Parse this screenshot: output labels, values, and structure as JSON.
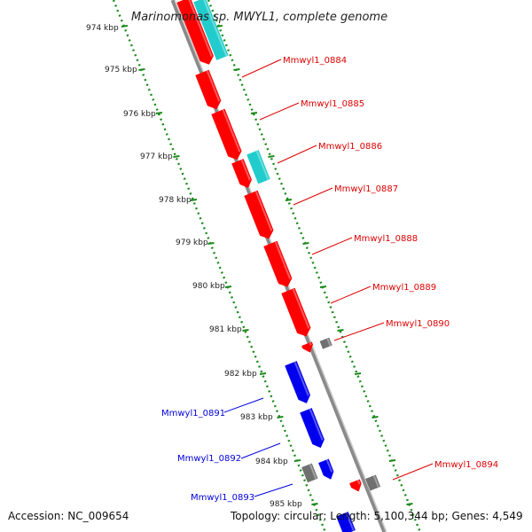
{
  "title": "Marinomonas sp. MWYL1, complete genome",
  "footer": {
    "accession": "Accession: NC_009654",
    "summary": "Topology: circular; Length: 5,100,344 bp; Genes: 4,549"
  },
  "colors": {
    "forward_cds": "#ff0000",
    "reverse_cds": "#0000ee",
    "rna": "#22cccc",
    "other": "#707070",
    "ruler": "#1a8a1a",
    "backbone": "#8a8a8a"
  },
  "ruler_labels": [
    "974 kbp",
    "975 kbp",
    "976 kbp",
    "977 kbp",
    "978 kbp",
    "979 kbp",
    "980 kbp",
    "981 kbp",
    "982 kbp",
    "983 kbp",
    "984 kbp",
    "985 kbp"
  ],
  "gene_labels_right": [
    "Mmwyl1_0884",
    "Mmwyl1_0885",
    "Mmwyl1_0886",
    "Mmwyl1_0887",
    "Mmwyl1_0888",
    "Mmwyl1_0889",
    "Mmwyl1_0890",
    "Mmwyl1_0894"
  ],
  "gene_labels_left": [
    "Mmwyl1_0891",
    "Mmwyl1_0892",
    "Mmwyl1_0893"
  ]
}
